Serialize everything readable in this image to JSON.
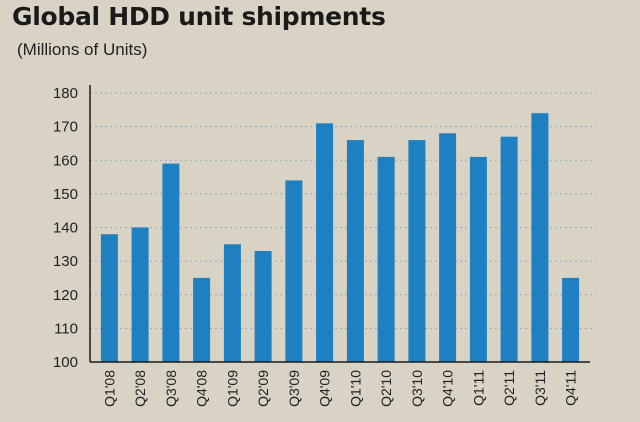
{
  "chart_data": {
    "type": "bar",
    "title": "Global HDD unit shipments",
    "subtitle": "(Millions of Units)",
    "categories": [
      "Q1'08",
      "Q2'08",
      "Q3'08",
      "Q4'08",
      "Q1'09",
      "Q2'09",
      "Q3'09",
      "Q4'09",
      "Q1'10",
      "Q2'10",
      "Q3'10",
      "Q4'10",
      "Q1'11",
      "Q2'11",
      "Q3'11",
      "Q4'11"
    ],
    "values": [
      138,
      140,
      159,
      125,
      135,
      133,
      154,
      171,
      166,
      161,
      166,
      168,
      161,
      167,
      174,
      125
    ],
    "ylim": [
      100,
      180
    ],
    "yticks": [
      100,
      110,
      120,
      130,
      140,
      150,
      160,
      170,
      180
    ],
    "grid": true,
    "colors": {
      "bar": "#1e7fc1",
      "grid": "#8fa9bd",
      "axis": "#1a1a1a",
      "background": "#d8d3c5"
    }
  }
}
